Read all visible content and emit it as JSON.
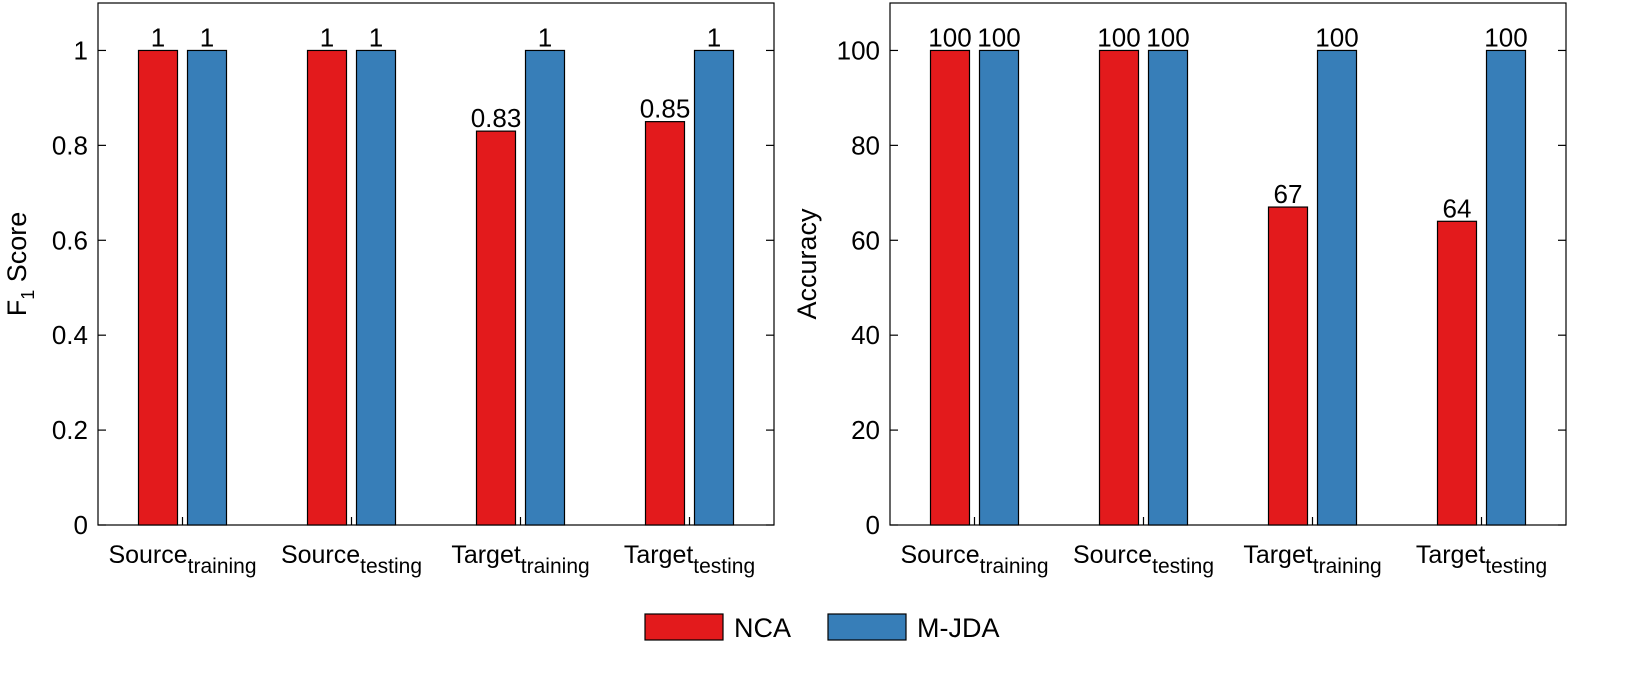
{
  "chart_data": [
    {
      "type": "bar",
      "categories": [
        {
          "main": "Source",
          "sub": "training"
        },
        {
          "main": "Source",
          "sub": "testing"
        },
        {
          "main": "Target",
          "sub": "training"
        },
        {
          "main": "Target",
          "sub": "testing"
        }
      ],
      "ylabel_main": "F",
      "ylabel_sub": "1",
      "ylabel_rest": " Score",
      "ylim": [
        0,
        1.1
      ],
      "yticks": [
        {
          "value": 0,
          "label": "0"
        },
        {
          "value": 0.2,
          "label": "0.2"
        },
        {
          "value": 0.4,
          "label": "0.4"
        },
        {
          "value": 0.6,
          "label": "0.6"
        },
        {
          "value": 0.8,
          "label": "0.8"
        },
        {
          "value": 1,
          "label": "1"
        }
      ],
      "grid": false,
      "series": [
        {
          "name": "NCA",
          "values": [
            1,
            1,
            0.83,
            0.85
          ],
          "labels": [
            "1",
            "1",
            "0.83",
            "0.85"
          ]
        },
        {
          "name": "M-JDA",
          "values": [
            1,
            1,
            1,
            1
          ],
          "labels": [
            "1",
            "1",
            "1",
            "1"
          ]
        }
      ]
    },
    {
      "type": "bar",
      "categories": [
        {
          "main": "Source",
          "sub": "training"
        },
        {
          "main": "Source",
          "sub": "testing"
        },
        {
          "main": "Target",
          "sub": "training"
        },
        {
          "main": "Target",
          "sub": "testing"
        }
      ],
      "ylabel_main": "Accuracy",
      "ylabel_sub": "",
      "ylabel_rest": "",
      "ylim": [
        0,
        110
      ],
      "yticks": [
        {
          "value": 0,
          "label": "0"
        },
        {
          "value": 20,
          "label": "20"
        },
        {
          "value": 40,
          "label": "40"
        },
        {
          "value": 60,
          "label": "60"
        },
        {
          "value": 80,
          "label": "80"
        },
        {
          "value": 100,
          "label": "100"
        }
      ],
      "grid": false,
      "series": [
        {
          "name": "NCA",
          "values": [
            100,
            100,
            67,
            64
          ],
          "labels": [
            "100",
            "100",
            "67",
            "64"
          ]
        },
        {
          "name": "M-JDA",
          "values": [
            100,
            100,
            100,
            100
          ],
          "labels": [
            "100",
            "100",
            "100",
            "100"
          ]
        }
      ]
    }
  ],
  "legend": {
    "placement": "bottom-center",
    "items": [
      {
        "label": "NCA",
        "color": "#e31a1c"
      },
      {
        "label": "M-JDA",
        "color": "#377eb8"
      }
    ]
  },
  "colors": {
    "series": [
      "#e31a1c",
      "#377eb8"
    ]
  }
}
